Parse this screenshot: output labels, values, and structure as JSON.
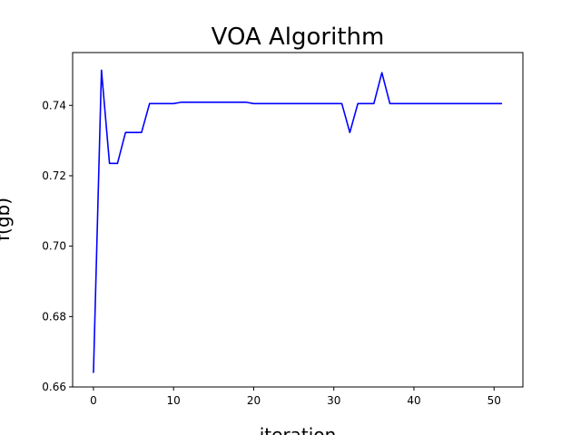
{
  "chart_data": {
    "type": "line",
    "title": "VOA Algorithm",
    "xlabel": "iteration",
    "ylabel": "f(gb)",
    "xlim": [
      -2.6,
      53.6
    ],
    "ylim": [
      0.66,
      0.755
    ],
    "xticks": [
      0,
      10,
      20,
      30,
      40,
      50
    ],
    "yticks": [
      0.66,
      0.68,
      0.7,
      0.72,
      0.74
    ],
    "ytick_labels": [
      "0.66",
      "0.68",
      "0.70",
      "0.72",
      "0.74"
    ],
    "grid": false,
    "series": [
      {
        "color": "#0000ff",
        "x": [
          0,
          1,
          2,
          3,
          4,
          5,
          6,
          7,
          8,
          9,
          10,
          11,
          12,
          13,
          14,
          15,
          16,
          17,
          18,
          19,
          20,
          21,
          22,
          23,
          24,
          25,
          26,
          27,
          28,
          29,
          30,
          31,
          32,
          33,
          34,
          35,
          36,
          37,
          38,
          39,
          40,
          41,
          42,
          43,
          44,
          45,
          46,
          47,
          48,
          49,
          50,
          51
        ],
        "y": [
          0.664,
          0.75,
          0.7235,
          0.7235,
          0.7323,
          0.7323,
          0.7323,
          0.7405,
          0.7405,
          0.7405,
          0.7405,
          0.7409,
          0.7409,
          0.7409,
          0.7409,
          0.7409,
          0.7409,
          0.7409,
          0.7409,
          0.7409,
          0.7405,
          0.7405,
          0.7405,
          0.7405,
          0.7405,
          0.7405,
          0.7405,
          0.7405,
          0.7405,
          0.7405,
          0.7405,
          0.7405,
          0.7323,
          0.7405,
          0.7405,
          0.7405,
          0.7493,
          0.7405,
          0.7405,
          0.7405,
          0.7405,
          0.7405,
          0.7405,
          0.7405,
          0.7405,
          0.7405,
          0.7405,
          0.7405,
          0.7405,
          0.7405,
          0.7405,
          0.7405
        ]
      }
    ]
  }
}
